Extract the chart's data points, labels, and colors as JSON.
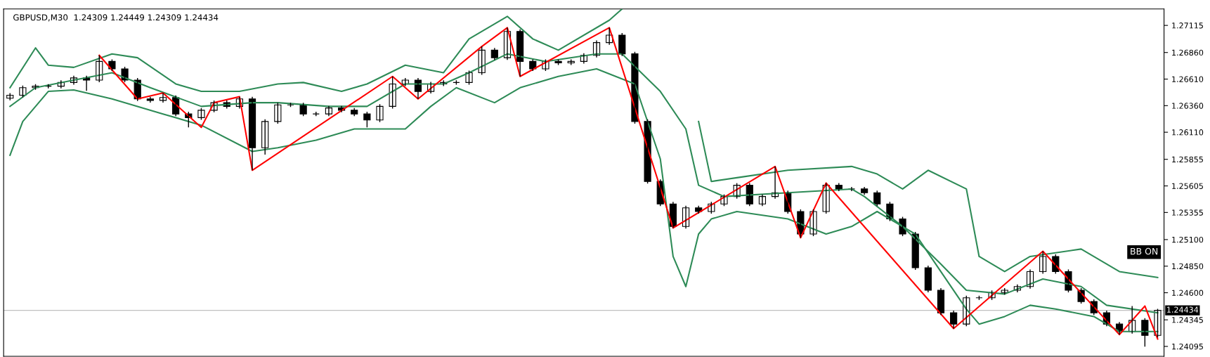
{
  "chart_data": {
    "type": "candlestick",
    "title": "GBPUSD,M30  1.24309 1.24449 1.24309 1.24434",
    "categories": [
      null,
      null,
      null,
      null,
      null,
      null,
      null,
      null,
      null,
      null,
      null,
      null,
      null,
      null,
      null,
      null,
      null,
      null,
      null,
      null,
      null,
      null,
      null,
      null,
      null,
      null,
      null,
      null,
      null,
      null,
      null,
      null,
      null,
      null,
      null,
      null,
      null,
      null,
      null,
      null,
      null,
      null,
      null,
      null,
      null,
      null,
      null,
      null,
      null,
      null,
      null,
      null,
      null,
      null,
      null,
      null,
      null,
      null,
      null,
      null,
      null,
      null,
      null,
      null,
      null,
      null,
      null,
      null,
      null,
      null,
      null,
      null,
      null,
      null,
      null,
      null,
      null,
      null,
      null,
      null,
      null,
      null,
      null,
      null,
      null,
      null,
      null,
      null,
      null,
      null,
      null
    ],
    "color": "#000000",
    "ohlc": [
      [
        1.2643,
        1.26478,
        1.2641,
        1.26458
      ],
      [
        1.26458,
        1.26549,
        1.26438,
        1.26529
      ],
      [
        1.26529,
        1.26563,
        1.26509,
        1.26543
      ],
      [
        1.26543,
        1.26563,
        1.26523,
        1.26543
      ],
      [
        1.26543,
        1.26598,
        1.26523,
        1.26578
      ],
      [
        1.26578,
        1.26641,
        1.26558,
        1.26621
      ],
      [
        1.26621,
        1.26641,
        1.265,
        1.266
      ],
      [
        1.266,
        1.26833,
        1.2658,
        1.26776
      ],
      [
        1.26776,
        1.26796,
        1.26686,
        1.26706
      ],
      [
        1.26706,
        1.26726,
        1.2658,
        1.266
      ],
      [
        1.266,
        1.2662,
        1.26403,
        1.26423
      ],
      [
        1.26423,
        1.26443,
        1.26389,
        1.26409
      ],
      [
        1.26409,
        1.2648,
        1.26389,
        1.26437
      ],
      [
        1.26437,
        1.26457,
        1.26262,
        1.26282
      ],
      [
        1.26282,
        1.26302,
        1.26155,
        1.26247
      ],
      [
        1.26247,
        1.26337,
        1.26227,
        1.26317
      ],
      [
        1.26317,
        1.26408,
        1.26297,
        1.26388
      ],
      [
        1.26388,
        1.26408,
        1.26333,
        1.26353
      ],
      [
        1.26353,
        1.26444,
        1.26333,
        1.26423
      ],
      [
        1.26423,
        1.26443,
        1.25752,
        1.25964
      ],
      [
        1.25964,
        1.26231,
        1.259,
        1.26211
      ],
      [
        1.26211,
        1.26387,
        1.26191,
        1.26367
      ],
      [
        1.26367,
        1.26387,
        1.26347,
        1.26367
      ],
      [
        1.26367,
        1.26387,
        1.26262,
        1.26282
      ],
      [
        1.26282,
        1.26302,
        1.26262,
        1.26282
      ],
      [
        1.26282,
        1.26358,
        1.26262,
        1.26338
      ],
      [
        1.26338,
        1.26358,
        1.26297,
        1.26317
      ],
      [
        1.26317,
        1.26337,
        1.26262,
        1.26282
      ],
      [
        1.26282,
        1.26302,
        1.26155,
        1.26225
      ],
      [
        1.26225,
        1.26373,
        1.26205,
        1.26353
      ],
      [
        1.26353,
        1.26635,
        1.26333,
        1.26564
      ],
      [
        1.26564,
        1.2662,
        1.26544,
        1.266
      ],
      [
        1.266,
        1.2662,
        1.26423,
        1.26494
      ],
      [
        1.26494,
        1.26584,
        1.26474,
        1.26564
      ],
      [
        1.26564,
        1.26598,
        1.26544,
        1.26578
      ],
      [
        1.26578,
        1.26598,
        1.26558,
        1.26578
      ],
      [
        1.26578,
        1.2669,
        1.26558,
        1.2667
      ],
      [
        1.2667,
        1.26917,
        1.2665,
        1.26882
      ],
      [
        1.26882,
        1.26902,
        1.26791,
        1.26811
      ],
      [
        1.26811,
        1.27094,
        1.26791,
        1.27058
      ],
      [
        1.27058,
        1.27078,
        1.26635,
        1.26776
      ],
      [
        1.26776,
        1.26796,
        1.26686,
        1.26706
      ],
      [
        1.26706,
        1.26796,
        1.26686,
        1.26776
      ],
      [
        1.26776,
        1.26796,
        1.26742,
        1.26762
      ],
      [
        1.26762,
        1.26796,
        1.26742,
        1.26776
      ],
      [
        1.26776,
        1.26853,
        1.26756,
        1.26833
      ],
      [
        1.26833,
        1.26973,
        1.26813,
        1.26953
      ],
      [
        1.26953,
        1.27094,
        1.26933,
        1.27023
      ],
      [
        1.27023,
        1.27043,
        1.26827,
        1.26847
      ],
      [
        1.26847,
        1.26867,
        1.26191,
        1.26211
      ],
      [
        1.26211,
        1.26231,
        1.25627,
        1.25647
      ],
      [
        1.25647,
        1.25667,
        1.25415,
        1.25435
      ],
      [
        1.25435,
        1.25455,
        1.25209,
        1.25223
      ],
      [
        1.25223,
        1.25419,
        1.25203,
        1.25399
      ],
      [
        1.25399,
        1.25419,
        1.25344,
        1.25364
      ],
      [
        1.25364,
        1.25455,
        1.25344,
        1.25435
      ],
      [
        1.25435,
        1.25525,
        1.25415,
        1.25505
      ],
      [
        1.25505,
        1.25631,
        1.25485,
        1.25611
      ],
      [
        1.25611,
        1.25631,
        1.25415,
        1.25435
      ],
      [
        1.25435,
        1.25525,
        1.25415,
        1.25505
      ],
      [
        1.25505,
        1.25788,
        1.25485,
        1.25541
      ],
      [
        1.25541,
        1.25561,
        1.25344,
        1.25364
      ],
      [
        1.25364,
        1.25384,
        1.25117,
        1.25152
      ],
      [
        1.25152,
        1.25384,
        1.25132,
        1.25364
      ],
      [
        1.25364,
        1.25632,
        1.25344,
        1.25611
      ],
      [
        1.25611,
        1.25631,
        1.25556,
        1.25576
      ],
      [
        1.25576,
        1.25596,
        1.25556,
        1.25576
      ],
      [
        1.25576,
        1.25596,
        1.25521,
        1.25541
      ],
      [
        1.25541,
        1.25561,
        1.25415,
        1.25435
      ],
      [
        1.25435,
        1.25455,
        1.25274,
        1.25294
      ],
      [
        1.25294,
        1.25314,
        1.25132,
        1.25152
      ],
      [
        1.25152,
        1.25172,
        1.24815,
        1.24835
      ],
      [
        1.24835,
        1.24855,
        1.24603,
        1.24623
      ],
      [
        1.24623,
        1.24643,
        1.24391,
        1.24411
      ],
      [
        1.24411,
        1.24431,
        1.24263,
        1.24305
      ],
      [
        1.24305,
        1.24572,
        1.24285,
        1.24552
      ],
      [
        1.24552,
        1.24572,
        1.24532,
        1.24552
      ],
      [
        1.24552,
        1.24622,
        1.24532,
        1.24602
      ],
      [
        1.24602,
        1.24643,
        1.24582,
        1.24623
      ],
      [
        1.24623,
        1.24678,
        1.24603,
        1.24658
      ],
      [
        1.24658,
        1.24819,
        1.24638,
        1.24799
      ],
      [
        1.24799,
        1.2499,
        1.24779,
        1.24941
      ],
      [
        1.24941,
        1.24961,
        1.24779,
        1.24799
      ],
      [
        1.24799,
        1.24819,
        1.24603,
        1.24623
      ],
      [
        1.24623,
        1.24643,
        1.24497,
        1.24517
      ],
      [
        1.24517,
        1.24537,
        1.24391,
        1.24411
      ],
      [
        1.24411,
        1.24431,
        1.24285,
        1.24305
      ],
      [
        1.24305,
        1.24325,
        1.24206,
        1.24235
      ],
      [
        1.24235,
        1.24475,
        1.24215,
        1.2434
      ],
      [
        1.2434,
        1.2436,
        1.24093,
        1.24199
      ],
      [
        1.24199,
        1.24449,
        1.24179,
        1.24434
      ]
    ],
    "series": [
      {
        "type": "line",
        "color": "#2e8b57",
        "values": [
          1.26529,
          null,
          1.26903,
          1.26741,
          null,
          1.2672,
          null,
          null,
          1.26847,
          null,
          1.26811,
          null,
          null,
          1.26564,
          null,
          1.26494,
          null,
          null,
          1.26494,
          null,
          null,
          1.26564,
          null,
          1.26578,
          null,
          null,
          1.26494,
          null,
          1.26564,
          null,
          null,
          1.26741,
          null,
          null,
          1.2667,
          null,
          1.26988,
          null,
          null,
          1.272,
          null,
          1.26988,
          null,
          1.26882,
          null,
          null,
          null,
          1.27164,
          1.2727,
          null,
          null,
          null,
          null,
          null,
          null,
          null,
          null,
          null,
          null,
          null,
          null,
          null,
          null,
          null,
          null,
          null,
          null,
          null,
          null,
          null,
          null,
          null,
          null,
          null,
          null,
          null,
          null,
          null,
          null,
          null,
          null,
          null,
          null,
          null,
          null,
          null,
          null,
          null,
          null,
          null,
          null
        ]
      },
      {
        "type": "line",
        "color": "#2e8b57",
        "values": [
          null,
          null,
          null,
          null,
          null,
          null,
          null,
          null,
          null,
          null,
          null,
          null,
          null,
          null,
          null,
          null,
          null,
          null,
          null,
          null,
          null,
          null,
          null,
          null,
          null,
          null,
          null,
          null,
          null,
          null,
          null,
          null,
          null,
          null,
          null,
          null,
          null,
          null,
          null,
          null,
          null,
          null,
          null,
          null,
          null,
          null,
          null,
          null,
          null,
          null,
          null,
          null,
          null,
          null,
          1.26211,
          1.25647,
          null,
          1.25682,
          null,
          null,
          null,
          1.25752,
          null,
          null,
          null,
          null,
          1.25788,
          null,
          1.25717,
          null,
          1.25576,
          null,
          1.25752,
          null,
          null,
          1.25576,
          1.24941,
          null,
          1.24799,
          null,
          1.24941,
          null,
          null,
          null,
          1.25011,
          null,
          null,
          1.24799,
          null,
          null,
          1.24743
        ]
      },
      {
        "type": "line",
        "color": "#2e8b57",
        "values": [
          1.26353,
          null,
          1.26529,
          null,
          null,
          1.266,
          null,
          null,
          1.2667,
          null,
          null,
          1.26529,
          null,
          null,
          null,
          1.26353,
          null,
          null,
          null,
          1.26388,
          null,
          1.26388,
          null,
          null,
          null,
          1.26353,
          null,
          null,
          1.26353,
          null,
          null,
          1.26564,
          null,
          null,
          1.26564,
          null,
          1.2667,
          null,
          null,
          1.26847,
          null,
          null,
          1.26776,
          null,
          null,
          null,
          1.26847,
          null,
          1.26847,
          null,
          null,
          1.26494,
          null,
          1.26141,
          1.25611,
          null,
          1.25505,
          null,
          null,
          null,
          null,
          1.25541,
          null,
          null,
          null,
          null,
          1.25576,
          1.25505,
          null,
          null,
          1.25223,
          null,
          null,
          1.2487,
          null,
          1.24623,
          null,
          null,
          1.24588,
          null,
          null,
          1.24729,
          null,
          null,
          1.24658,
          null,
          1.24482,
          null,
          null,
          null,
          1.24411
        ]
      },
      {
        "type": "line",
        "color": "#2e8b57",
        "values": [
          1.25894,
          1.26211,
          null,
          1.26494,
          null,
          1.26508,
          null,
          null,
          1.26423,
          null,
          null,
          null,
          1.26282,
          null,
          null,
          1.26176,
          null,
          null,
          null,
          1.25929,
          null,
          1.25964,
          null,
          null,
          1.26035,
          null,
          null,
          1.26141,
          null,
          1.26141,
          null,
          1.26141,
          null,
          1.26353,
          null,
          1.26529,
          null,
          null,
          1.26388,
          null,
          1.26529,
          null,
          null,
          1.26635,
          null,
          null,
          1.26706,
          null,
          null,
          1.26564,
          null,
          1.25858,
          1.24941,
          1.24658,
          1.25152,
          1.25294,
          null,
          1.25364,
          null,
          null,
          null,
          1.25294,
          null,
          null,
          1.25152,
          null,
          1.25223,
          null,
          1.25364,
          null,
          null,
          1.25152,
          null,
          null,
          null,
          1.24446,
          1.24305,
          null,
          1.24376,
          null,
          1.24482,
          null,
          1.24446,
          null,
          null,
          1.24376,
          null,
          1.24235,
          null,
          null,
          1.24235
        ]
      },
      {
        "type": "line",
        "color": "#ff0000",
        "values": [
          null,
          null,
          null,
          null,
          null,
          null,
          null,
          1.26833,
          null,
          null,
          1.26423,
          null,
          1.2648,
          null,
          null,
          1.26155,
          1.26388,
          null,
          1.26444,
          1.25752,
          null,
          null,
          null,
          null,
          null,
          null,
          null,
          null,
          null,
          null,
          1.26635,
          null,
          1.26423,
          null,
          null,
          null,
          null,
          1.26917,
          null,
          1.27094,
          1.26635,
          null,
          null,
          null,
          null,
          null,
          null,
          1.27094,
          null,
          null,
          null,
          null,
          1.25209,
          null,
          null,
          null,
          null,
          null,
          null,
          null,
          1.25788,
          null,
          1.25117,
          null,
          1.25632,
          null,
          null,
          null,
          null,
          null,
          null,
          null,
          null,
          null,
          1.24263,
          null,
          null,
          null,
          null,
          null,
          null,
          1.2499,
          null,
          null,
          null,
          null,
          null,
          1.24206,
          null,
          1.24475,
          1.24164
        ]
      }
    ],
    "ylim": [
      1.24002,
      1.2727
    ],
    "yticks": [
      {
        "value": 1.24095,
        "label": "1.24095"
      },
      {
        "value": 1.24345,
        "label": "1.24345"
      },
      {
        "value": 1.246,
        "label": "1.24600"
      },
      {
        "value": 1.2485,
        "label": "1.24850"
      },
      {
        "value": 1.251,
        "label": "1.25100"
      },
      {
        "value": 1.25355,
        "label": "1.25355"
      },
      {
        "value": 1.25605,
        "label": "1.25605"
      },
      {
        "value": 1.25855,
        "label": "1.25855"
      },
      {
        "value": 1.2611,
        "label": "1.26110"
      },
      {
        "value": 1.2636,
        "label": "1.26360"
      },
      {
        "value": 1.2661,
        "label": "1.26610"
      },
      {
        "value": 1.2686,
        "label": "1.26860"
      },
      {
        "value": 1.27115,
        "label": "1.27115"
      }
    ],
    "ref_lines": [
      {
        "axis": "y",
        "value": 1.24434,
        "label": "1.24434",
        "color": "#c0c0c0"
      }
    ],
    "annotations": [
      "BB ON"
    ],
    "tick_labels": "y",
    "grid": false
  }
}
